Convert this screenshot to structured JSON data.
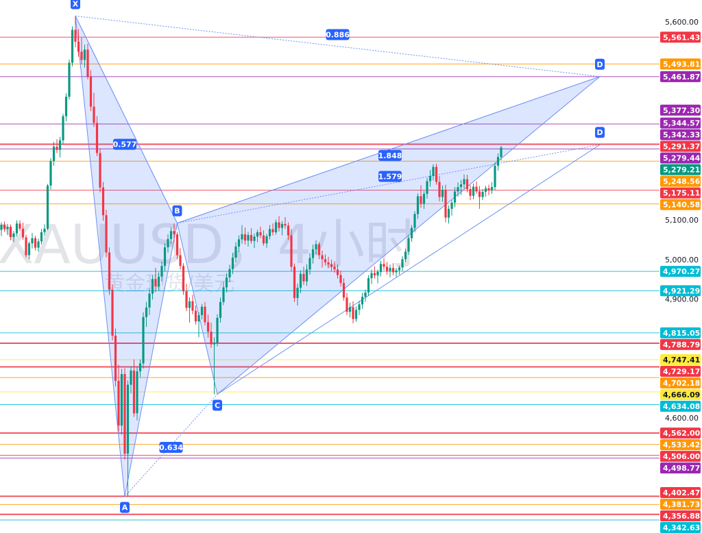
{
  "chart_data": {
    "type": "candlestick",
    "watermark": {
      "symbol": "XAUUSD，4小时",
      "name": "黄金现货/美元"
    },
    "y_range": [
      4330,
      5650
    ],
    "axis_ticks": [
      {
        "value": 5600,
        "label": "5,600.00"
      },
      {
        "value": 5500,
        "label": "5,500.00"
      },
      {
        "value": 5200,
        "label": "5,200.00"
      },
      {
        "value": 5100,
        "label": "5,100.00"
      },
      {
        "value": 5000,
        "label": "5,000.00"
      },
      {
        "value": 4900,
        "label": "4,900.00"
      },
      {
        "value": 4600,
        "label": "4,600.00"
      }
    ],
    "price_levels": [
      {
        "value": 5561.43,
        "label": "5,561.43",
        "color": "#f23645",
        "line": true
      },
      {
        "value": 5493.81,
        "label": "5,493.81",
        "color": "#ff9800",
        "line": true
      },
      {
        "value": 5461.87,
        "label": "5,461.87",
        "color": "#9c27b0",
        "line": true
      },
      {
        "value": 5377.3,
        "label": "5,377.30",
        "color": "#9c27b0",
        "line": false
      },
      {
        "value": 5344.57,
        "label": "5,344.57",
        "color": "#9c27b0",
        "line": false
      },
      {
        "value": 5342.33,
        "label": "5,342.33",
        "color": "#9c27b0",
        "line": true
      },
      {
        "value": 5291.37,
        "label": "5,291.37",
        "color": "#f23645",
        "line": true,
        "thick": true
      },
      {
        "value": 5279.44,
        "label": "5,279.44",
        "color": "#9c27b0",
        "line": true
      },
      {
        "value": 5279.21,
        "label": "5,279.21",
        "color": "#089981",
        "line": false
      },
      {
        "value": 5248.56,
        "label": "5,248.56",
        "color": "#ff9800",
        "line": true
      },
      {
        "value": 5175.11,
        "label": "5,175.11",
        "color": "#f23645",
        "line": true
      },
      {
        "value": 5140.58,
        "label": "5,140.58",
        "color": "#ff9800",
        "line": true
      },
      {
        "value": 4970.27,
        "label": "4,970.27",
        "color": "#00bcd4",
        "line": true
      },
      {
        "value": 4921.29,
        "label": "4,921.29",
        "color": "#00bcd4",
        "line": true
      },
      {
        "value": 4815.05,
        "label": "4,815.05",
        "color": "#00bcd4",
        "line": true
      },
      {
        "value": 4788.79,
        "label": "4,788.79",
        "color": "#f23645",
        "line": true,
        "thick": true
      },
      {
        "value": 4747.41,
        "label": "4,747.41",
        "color": "#ffeb3b",
        "line": true,
        "text_color": "#131722"
      },
      {
        "value": 4729.17,
        "label": "4,729.17",
        "color": "#f23645",
        "line": true,
        "thick": true
      },
      {
        "value": 4702.18,
        "label": "4,702.18",
        "color": "#ff9800",
        "line": true
      },
      {
        "value": 4666.09,
        "label": "4,666.09",
        "color": "#ffeb3b",
        "line": true,
        "text_color": "#131722"
      },
      {
        "value": 4634.08,
        "label": "4,634.08",
        "color": "#00bcd4",
        "line": true
      },
      {
        "value": 4562.0,
        "label": "4,562.00",
        "color": "#f23645",
        "line": true,
        "thick": true
      },
      {
        "value": 4533.42,
        "label": "4,533.42",
        "color": "#ff9800",
        "line": true
      },
      {
        "value": 4506.0,
        "label": "4,506.00",
        "color": "#f23645",
        "line": true
      },
      {
        "value": 4498.77,
        "label": "4,498.77",
        "color": "#9c27b0",
        "line": true
      },
      {
        "value": 4402.47,
        "label": "4,402.47",
        "color": "#f23645",
        "line": true,
        "thick": true
      },
      {
        "value": 4381.73,
        "label": "4,381.73",
        "color": "#ff9800",
        "line": true
      },
      {
        "value": 4356.88,
        "label": "4,356.88",
        "color": "#f23645",
        "line": true,
        "thick": true
      },
      {
        "value": 4342.63,
        "label": "4,342.63",
        "color": "#00bcd4",
        "line": true
      }
    ],
    "pattern_points": [
      {
        "label": "X",
        "bar": 24,
        "price": 5615,
        "label_pos": "above"
      },
      {
        "label": "A",
        "bar": 40,
        "price": 4402,
        "label_pos": "below"
      },
      {
        "label": "B",
        "bar": 57,
        "price": 5092,
        "label_pos": "above"
      },
      {
        "label": "C",
        "bar": 70,
        "price": 4660,
        "label_pos": "below"
      },
      {
        "label": "D",
        "bar": 194,
        "price": 5462,
        "label_pos": "above"
      },
      {
        "label": "D",
        "bar": 194,
        "price": 5290,
        "label_pos": "above"
      }
    ],
    "ratios": [
      {
        "label": "0.886",
        "bar": 109,
        "price": 5568
      },
      {
        "label": "0.577",
        "bar": 40,
        "price": 5291
      },
      {
        "label": "1.848",
        "bar": 126,
        "price": 5263
      },
      {
        "label": "1.579",
        "bar": 126,
        "price": 5210
      },
      {
        "label": "0.634",
        "bar": 55,
        "price": 4526
      }
    ],
    "candles": [
      [
        5075,
        5094,
        5060,
        5088
      ],
      [
        5088,
        5096,
        5070,
        5077
      ],
      [
        5077,
        5090,
        5062,
        5083
      ],
      [
        5083,
        5089,
        5049,
        5057
      ],
      [
        5057,
        5072,
        5044,
        5066
      ],
      [
        5066,
        5099,
        5058,
        5091
      ],
      [
        5091,
        5099,
        5072,
        5078
      ],
      [
        5078,
        5093,
        5050,
        5056
      ],
      [
        5056,
        5063,
        5005,
        5011
      ],
      [
        5011,
        5046,
        5001,
        5041
      ],
      [
        5041,
        5067,
        5028,
        5054
      ],
      [
        5054,
        5060,
        5023,
        5030
      ],
      [
        5030,
        5053,
        5020,
        5046
      ],
      [
        5046,
        5077,
        5039,
        5069
      ],
      [
        5069,
        5089,
        5061,
        5078
      ],
      [
        5078,
        5191,
        5074,
        5187
      ],
      [
        5187,
        5256,
        5177,
        5249
      ],
      [
        5249,
        5297,
        5237,
        5285
      ],
      [
        5285,
        5304,
        5269,
        5277
      ],
      [
        5277,
        5310,
        5258,
        5301
      ],
      [
        5301,
        5368,
        5291,
        5362
      ],
      [
        5362,
        5420,
        5349,
        5411
      ],
      [
        5411,
        5505,
        5404,
        5497
      ],
      [
        5497,
        5589,
        5488,
        5580
      ],
      [
        5580,
        5615,
        5536,
        5550
      ],
      [
        5550,
        5582,
        5512,
        5525
      ],
      [
        5525,
        5560,
        5493,
        5504
      ],
      [
        5504,
        5543,
        5485,
        5530
      ],
      [
        5530,
        5545,
        5455,
        5462
      ],
      [
        5462,
        5478,
        5375,
        5386
      ],
      [
        5386,
        5421,
        5335,
        5345
      ],
      [
        5345,
        5362,
        5261,
        5269
      ],
      [
        5269,
        5281,
        5170,
        5182
      ],
      [
        5182,
        5196,
        5098,
        5112
      ],
      [
        5112,
        5126,
        5006,
        5018
      ],
      [
        5018,
        5031,
        4911,
        4924
      ],
      [
        4924,
        4937,
        4796,
        4808
      ],
      [
        4808,
        4826,
        4680,
        4694
      ],
      [
        4694,
        4735,
        4566,
        4581
      ],
      [
        4581,
        4724,
        4558,
        4711
      ],
      [
        4711,
        4726,
        4495,
        4510
      ],
      [
        4510,
        4695,
        4402,
        4684
      ],
      [
        4684,
        4731,
        4662,
        4720
      ],
      [
        4720,
        4748,
        4603,
        4612
      ],
      [
        4612,
        4729,
        4594,
        4718
      ],
      [
        4718,
        4748,
        4703,
        4738
      ],
      [
        4738,
        4867,
        4725,
        4855
      ],
      [
        4855,
        4893,
        4830,
        4879
      ],
      [
        4879,
        4927,
        4860,
        4914
      ],
      [
        4914,
        4961,
        4899,
        4951
      ],
      [
        4951,
        4979,
        4918,
        4932
      ],
      [
        4932,
        4968,
        4921,
        4957
      ],
      [
        4957,
        4995,
        4945,
        4984
      ],
      [
        4984,
        5041,
        4970,
        5031
      ],
      [
        5031,
        5064,
        5018,
        5052
      ],
      [
        5052,
        5081,
        5039,
        5072
      ],
      [
        5072,
        5092,
        5043,
        5064
      ],
      [
        5064,
        5070,
        5001,
        5011
      ],
      [
        5011,
        5029,
        4975,
        4984
      ],
      [
        4984,
        4991,
        4911,
        4920
      ],
      [
        4920,
        4939,
        4870,
        4878
      ],
      [
        4878,
        4905,
        4841,
        4895
      ],
      [
        4895,
        4911,
        4862,
        4871
      ],
      [
        4871,
        4884,
        4836,
        4844
      ],
      [
        4844,
        4867,
        4804,
        4860
      ],
      [
        4860,
        4888,
        4849,
        4881
      ],
      [
        4881,
        4893,
        4834,
        4842
      ],
      [
        4842,
        4861,
        4803,
        4818
      ],
      [
        4818,
        4841,
        4777,
        4786
      ],
      [
        4786,
        4804,
        4660,
        4790
      ],
      [
        4790,
        4862,
        4781,
        4853
      ],
      [
        4853,
        4904,
        4841,
        4893
      ],
      [
        4893,
        4944,
        4885,
        4930
      ],
      [
        4930,
        4966,
        4917,
        4955
      ],
      [
        4955,
        4987,
        4943,
        4976
      ],
      [
        4976,
        5017,
        4963,
        5005
      ],
      [
        5005,
        5044,
        4993,
        5033
      ],
      [
        5033,
        5061,
        5019,
        5051
      ],
      [
        5051,
        5087,
        5040,
        5064
      ],
      [
        5064,
        5081,
        5038,
        5048
      ],
      [
        5048,
        5070,
        5033,
        5062
      ],
      [
        5062,
        5079,
        5040,
        5047
      ],
      [
        5047,
        5066,
        5029,
        5058
      ],
      [
        5058,
        5075,
        5044,
        5069
      ],
      [
        5069,
        5083,
        5054,
        5061
      ],
      [
        5061,
        5074,
        5035,
        5041
      ],
      [
        5041,
        5065,
        5030,
        5059
      ],
      [
        5059,
        5087,
        5051,
        5077
      ],
      [
        5077,
        5091,
        5061,
        5069
      ],
      [
        5069,
        5101,
        5063,
        5094
      ],
      [
        5094,
        5110,
        5071,
        5080
      ],
      [
        5080,
        5097,
        5061,
        5090
      ],
      [
        5090,
        5107,
        5078,
        5086
      ],
      [
        5086,
        5094,
        5050,
        5061
      ],
      [
        5061,
        5077,
        4971,
        4982
      ],
      [
        4982,
        4990,
        4893,
        4903
      ],
      [
        4903,
        4939,
        4884,
        4929
      ],
      [
        4929,
        4973,
        4915,
        4964
      ],
      [
        4964,
        4982,
        4936,
        4945
      ],
      [
        4945,
        4988,
        4934,
        4975
      ],
      [
        4975,
        5016,
        4962,
        5004
      ],
      [
        5004,
        5038,
        4990,
        5026
      ],
      [
        5026,
        5049,
        5013,
        5039
      ],
      [
        5039,
        5044,
        5001,
        5011
      ],
      [
        5011,
        5023,
        4980,
        5001
      ],
      [
        5001,
        5013,
        4985,
        4993
      ],
      [
        4993,
        5007,
        4978,
        4988
      ],
      [
        4988,
        5000,
        4971,
        4982
      ],
      [
        4982,
        4996,
        4967,
        4975
      ],
      [
        4975,
        4988,
        4952,
        4961
      ],
      [
        4961,
        4972,
        4932,
        4941
      ],
      [
        4941,
        4953,
        4896,
        4904
      ],
      [
        4904,
        4916,
        4860,
        4868
      ],
      [
        4868,
        4891,
        4854,
        4880
      ],
      [
        4880,
        4895,
        4839,
        4850
      ],
      [
        4850,
        4882,
        4843,
        4873
      ],
      [
        4873,
        4896,
        4860,
        4887
      ],
      [
        4887,
        4916,
        4876,
        4906
      ],
      [
        4906,
        4924,
        4893,
        4917
      ],
      [
        4917,
        4961,
        4909,
        4953
      ],
      [
        4953,
        4975,
        4938,
        4966
      ],
      [
        4966,
        4983,
        4952,
        4960
      ],
      [
        4960,
        4975,
        4940,
        4969
      ],
      [
        4969,
        4997,
        4958,
        4989
      ],
      [
        4989,
        5004,
        4973,
        4982
      ],
      [
        4982,
        4994,
        4962,
        4971
      ],
      [
        4971,
        4987,
        4955,
        4979
      ],
      [
        4979,
        4991,
        4960,
        4968
      ],
      [
        4968,
        4979,
        4956,
        4973
      ],
      [
        4973,
        4985,
        4962,
        4980
      ],
      [
        4980,
        5009,
        4971,
        5001
      ],
      [
        5001,
        5028,
        4993,
        5020
      ],
      [
        5020,
        5061,
        5012,
        5054
      ],
      [
        5054,
        5087,
        5045,
        5080
      ],
      [
        5080,
        5122,
        5071,
        5115
      ],
      [
        5115,
        5167,
        5103,
        5160
      ],
      [
        5160,
        5188,
        5131,
        5141
      ],
      [
        5141,
        5173,
        5128,
        5166
      ],
      [
        5166,
        5206,
        5154,
        5198
      ],
      [
        5198,
        5226,
        5184,
        5211
      ],
      [
        5211,
        5241,
        5200,
        5234
      ],
      [
        5234,
        5242,
        5189,
        5196
      ],
      [
        5196,
        5211,
        5147,
        5158
      ],
      [
        5158,
        5187,
        5146,
        5176
      ],
      [
        5176,
        5189,
        5094,
        5106
      ],
      [
        5106,
        5137,
        5091,
        5128
      ],
      [
        5128,
        5151,
        5111,
        5144
      ],
      [
        5144,
        5183,
        5132,
        5172
      ],
      [
        5172,
        5195,
        5159,
        5183
      ],
      [
        5183,
        5201,
        5163,
        5190
      ],
      [
        5190,
        5215,
        5179,
        5203
      ],
      [
        5203,
        5214,
        5170,
        5178
      ],
      [
        5178,
        5188,
        5150,
        5161
      ],
      [
        5161,
        5192,
        5152,
        5184
      ],
      [
        5184,
        5197,
        5166,
        5172
      ],
      [
        5172,
        5186,
        5128,
        5158
      ],
      [
        5158,
        5178,
        5150,
        5171
      ],
      [
        5171,
        5186,
        5159,
        5180
      ],
      [
        5180,
        5189,
        5163,
        5175
      ],
      [
        5175,
        5196,
        5166,
        5183
      ],
      [
        5183,
        5245,
        5175,
        5237
      ],
      [
        5237,
        5268,
        5225,
        5259
      ],
      [
        5259,
        5287,
        5251,
        5283
      ]
    ]
  }
}
